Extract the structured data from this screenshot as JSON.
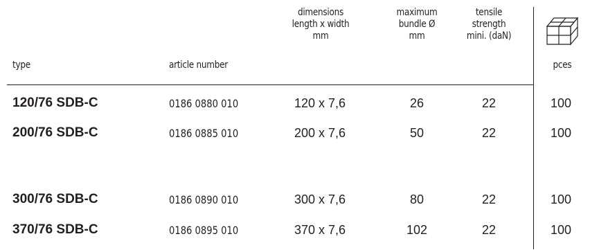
{
  "headers": {
    "type": "type",
    "article": "article number",
    "dimensions": [
      "dimensions",
      "length x width",
      "mm"
    ],
    "bundle": [
      "maximum",
      "bundle Ø",
      "mm"
    ],
    "tensile": [
      "tensile",
      "strength",
      "mini. (daN)"
    ],
    "pces": "pces",
    "pces_icon": "box-icon"
  },
  "rows": [
    {
      "type": "120/76 SDB-C",
      "article": "0186 0880 010",
      "dims": "120 x 7,6",
      "bundle": "26",
      "tensile": "22",
      "pces": "100"
    },
    {
      "type": "200/76 SDB-C",
      "article": "0186 0885 010",
      "dims": "200 x 7,6",
      "bundle": "50",
      "tensile": "22",
      "pces": "100"
    },
    {
      "type": "300/76 SDB-C",
      "article": "0186 0890 010",
      "dims": "300 x 7,6",
      "bundle": "80",
      "tensile": "22",
      "pces": "100"
    },
    {
      "type": "370/76 SDB-C",
      "article": "0186 0895 010",
      "dims": "370 x 7,6",
      "bundle": "102",
      "tensile": "22",
      "pces": "100"
    }
  ]
}
